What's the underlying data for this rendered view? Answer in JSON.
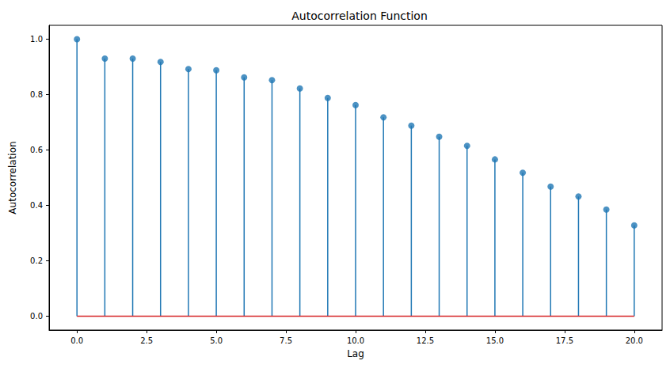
{
  "chart_data": {
    "type": "stem",
    "title": "Autocorrelation Function",
    "x_label": "Lag",
    "y_label": "Autocorrelation",
    "x": [
      0,
      1,
      2,
      3,
      4,
      5,
      6,
      7,
      8,
      9,
      10,
      11,
      12,
      13,
      14,
      15,
      16,
      17,
      18,
      19,
      20
    ],
    "values": [
      1.0,
      0.93,
      0.93,
      0.918,
      0.892,
      0.888,
      0.862,
      0.852,
      0.822,
      0.788,
      0.762,
      0.718,
      0.688,
      0.648,
      0.615,
      0.566,
      0.518,
      0.468,
      0.432,
      0.385,
      0.328
    ],
    "baseline": 0,
    "color": "#1f77b4",
    "marker": "circle",
    "xlim": [
      -1,
      21
    ],
    "xticks": [
      {
        "value": 0,
        "label": "0.0"
      },
      {
        "value": 2.5,
        "label": "2.5"
      },
      {
        "value": 5,
        "label": "5.0"
      },
      {
        "value": 7.5,
        "label": "7.5"
      },
      {
        "value": 10,
        "label": "10.0"
      },
      {
        "value": 12.5,
        "label": "12.5"
      },
      {
        "value": 15,
        "label": "15.0"
      },
      {
        "value": 17.5,
        "label": "17.5"
      },
      {
        "value": 20,
        "label": "20.0"
      }
    ],
    "ylim": [
      -0.05,
      1.05
    ],
    "yticks": [
      {
        "value": 0,
        "label": "0.0"
      },
      {
        "value": 0.2,
        "label": "0.2"
      },
      {
        "value": 0.4,
        "label": "0.4"
      },
      {
        "value": 0.6,
        "label": "0.6"
      },
      {
        "value": 0.8,
        "label": "0.8"
      },
      {
        "value": 1,
        "label": "1.0"
      }
    ],
    "grid": false
  }
}
